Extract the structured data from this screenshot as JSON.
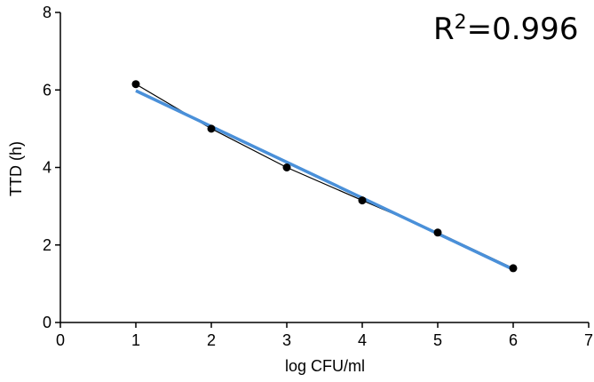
{
  "chart_data": {
    "type": "scatter",
    "xlabel": "log CFU/ml",
    "ylabel": "TTD (h)",
    "xlim": [
      0,
      7
    ],
    "ylim": [
      0,
      8
    ],
    "xticks": [
      "0",
      "1",
      "2",
      "3",
      "4",
      "5",
      "6",
      "7"
    ],
    "yticks": [
      "0",
      "2",
      "4",
      "6",
      "8"
    ],
    "annotation": {
      "base": "R",
      "sup": "2",
      "value": "=0.996"
    },
    "series": [
      {
        "kind": "data",
        "x": [
          1,
          2,
          3,
          4,
          5,
          6
        ],
        "y": [
          6.15,
          5.0,
          4.0,
          3.15,
          2.32,
          1.4
        ],
        "color": "#000000"
      },
      {
        "kind": "fit",
        "x": [
          1,
          6
        ],
        "y": [
          5.98,
          1.37
        ],
        "color": "#4a90d9"
      }
    ],
    "grid": false
  }
}
